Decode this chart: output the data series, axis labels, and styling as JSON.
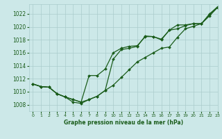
{
  "title": "Graphe pression niveau de la mer (hPa)",
  "background_color": "#cce8e8",
  "grid_color": "#aacccc",
  "line_color": "#1a5c1a",
  "text_color": "#1a5c1a",
  "xlim": [
    -0.5,
    23
  ],
  "ylim": [
    1007,
    1023.5
  ],
  "yticks": [
    1008,
    1010,
    1012,
    1014,
    1016,
    1018,
    1020,
    1022
  ],
  "xticks": [
    0,
    1,
    2,
    3,
    4,
    5,
    6,
    7,
    8,
    9,
    10,
    11,
    12,
    13,
    14,
    15,
    16,
    17,
    18,
    19,
    20,
    21,
    22,
    23
  ],
  "series": [
    [
      1011.2,
      1010.8,
      1010.7,
      1009.7,
      1009.2,
      1008.4,
      1008.2,
      1008.8,
      1009.3,
      1010.2,
      1011.0,
      1012.2,
      1013.4,
      1014.6,
      1015.3,
      1016.0,
      1016.7,
      1016.9,
      1018.4,
      1019.7,
      1020.1,
      1020.5,
      1021.7,
      1023.0
    ],
    [
      1011.2,
      1010.8,
      1010.7,
      1009.7,
      1009.2,
      1008.8,
      1008.4,
      1012.5,
      1012.5,
      1013.5,
      1016.0,
      1016.7,
      1017.0,
      1017.1,
      1018.5,
      1018.5,
      1018.0,
      1019.5,
      1019.7,
      1020.2,
      1020.5,
      1020.5,
      1021.9,
      1023.0
    ],
    [
      1011.2,
      1010.8,
      1010.7,
      1009.7,
      1009.2,
      1008.8,
      1008.4,
      1008.8,
      1009.3,
      1010.2,
      1015.0,
      1016.5,
      1016.7,
      1017.0,
      1018.6,
      1018.5,
      1018.1,
      1019.5,
      1020.3,
      1020.3,
      1020.5,
      1020.5,
      1022.0,
      1023.1
    ]
  ]
}
